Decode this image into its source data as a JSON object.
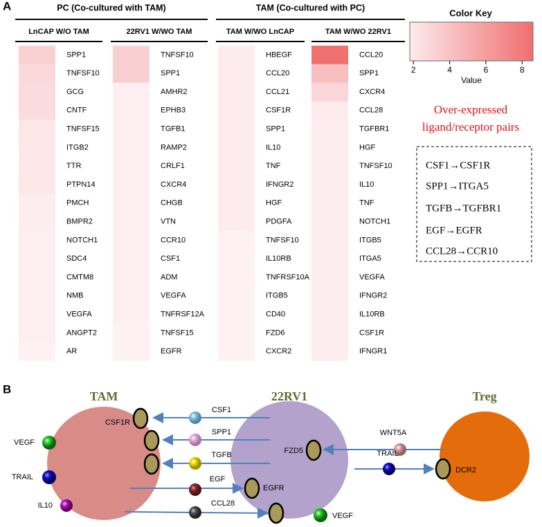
{
  "panel_a": {
    "label": "A",
    "groups": [
      {
        "title": "PC (Co-cultured with TAM)",
        "columns": [
          {
            "title": "LnCAP W/O TAM",
            "genes": [
              "SPP1",
              "TNFSF10",
              "GCG",
              "CNTF",
              "TNFSF15",
              "ITGB2",
              "TTR",
              "PTPN14",
              "PMCH",
              "BMPR2",
              "NOTCH1",
              "SDC4",
              "CMTM8",
              "NMB",
              "VEGFA",
              "ANGPT2",
              "AR"
            ],
            "values": [
              3.2,
              2.8,
              2.6,
              2.6,
              2.0,
              2.0,
              2.0,
              2.0,
              1.7,
              1.7,
              1.6,
              1.6,
              1.6,
              1.6,
              1.6,
              1.6,
              1.5
            ]
          },
          {
            "title": "22RV1 W/WO TAM",
            "genes": [
              "TNFSF10",
              "SPP1",
              "AMHR2",
              "EPHB3",
              "TGFB1",
              "RAMP2",
              "CRLF1",
              "CXCR4",
              "CHGB",
              "VTN",
              "CCR10",
              "CSF1",
              "ADM",
              "VEGFA",
              "TNFRSF12A",
              "TNFSF15",
              "EGFR"
            ],
            "values": [
              3.3,
              3.3,
              1.6,
              1.6,
              1.6,
              1.6,
              1.6,
              1.6,
              1.6,
              1.6,
              1.6,
              1.6,
              1.6,
              1.6,
              1.6,
              1.5,
              1.5
            ]
          }
        ]
      },
      {
        "title": "TAM (Co-cultured with PC)",
        "columns": [
          {
            "title": "TAM W/WO LnCAP",
            "genes": [
              "HBEGF",
              "CCL20",
              "CCL21",
              "CSF1R",
              "SPP1",
              "IL10",
              "TNF",
              "IFNGR2",
              "HGF",
              "PDGFA",
              "TNFSF10",
              "IL10RB",
              "TNFRSF10A",
              "ITGB5",
              "CD40",
              "FZD6",
              "CXCR2"
            ],
            "values": [
              1.8,
              1.8,
              1.8,
              1.8,
              1.8,
              1.8,
              1.8,
              1.8,
              1.8,
              1.8,
              1.5,
              1.5,
              1.5,
              1.5,
              1.5,
              1.5,
              1.5
            ]
          },
          {
            "title": "TAM W/WO 22RV1",
            "genes": [
              "CCL20",
              "SPP1",
              "CXCR4",
              "CCL28",
              "TGFBR1",
              "HGF",
              "TNFSF10",
              "IL10",
              "TNF",
              "NOTCH1",
              "ITGB5",
              "ITGA5",
              "VEGFA",
              "IFNGR2",
              "IL10RB",
              "CSF1R",
              "IFNGR1"
            ],
            "values": [
              8.5,
              4.2,
              3.0,
              1.8,
              1.7,
              1.7,
              1.7,
              1.7,
              1.7,
              1.7,
              1.7,
              1.7,
              1.7,
              1.7,
              1.7,
              1.7,
              1.7
            ]
          }
        ]
      }
    ],
    "color_key": {
      "title": "Color Key",
      "range": [
        1.8,
        8.6
      ],
      "ticks": [
        2,
        4,
        6,
        8
      ],
      "axis_label": "Value"
    },
    "annotation": [
      "Over-expressed",
      "ligand/receptor pairs"
    ],
    "pairs": [
      "CSF1→CSF1R",
      "SPP1→ITGA5",
      "TGFB→TGFBR1",
      "EGF→EGFR",
      "CCL28→CCR10"
    ]
  },
  "panel_b": {
    "label": "B",
    "cells": [
      "TAM",
      "22RV1",
      "Treg"
    ],
    "labels": [
      "CSF1",
      "SPP1",
      "TGFB",
      "EGF",
      "CCL28",
      "WNT5A",
      "TRAIL",
      "VEGF",
      "TRAIL",
      "IL10",
      "VEGF",
      "CSF1R",
      "EGFR",
      "FZD5",
      "DCR2"
    ]
  }
}
